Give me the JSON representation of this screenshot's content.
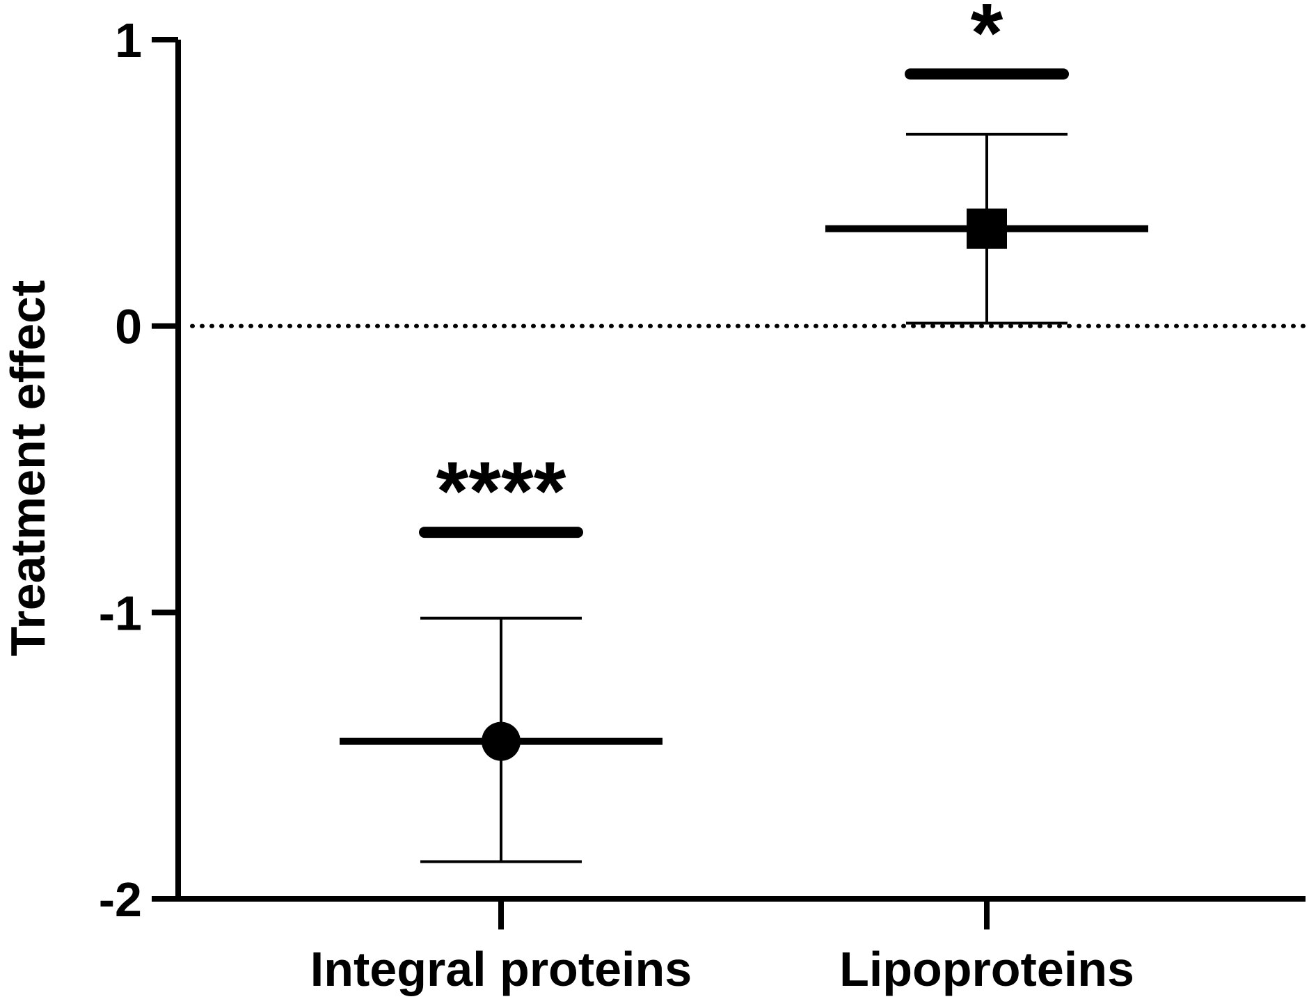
{
  "chart_data": {
    "type": "scatter",
    "ylabel": "Treatment effect",
    "xlabel": "",
    "title": "",
    "ylim": [
      -2,
      1
    ],
    "yticks": [
      "1",
      "0",
      "-1",
      "-2"
    ],
    "ytick_values": [
      1,
      0,
      -1,
      -2
    ],
    "categories": [
      "Integral proteins",
      "Lipoproteins"
    ],
    "reference_line": {
      "y": 0,
      "style": "dotted"
    },
    "grid": false,
    "points": [
      {
        "category": "Integral proteins",
        "marker": "circle",
        "y": -1.45,
        "y_err_low": -1.87,
        "y_err_high": -1.02,
        "significance": "****",
        "significance_bar_y": -0.72
      },
      {
        "category": "Lipoproteins",
        "marker": "square",
        "y": 0.34,
        "y_err_low": 0.01,
        "y_err_high": 0.67,
        "significance": "*",
        "significance_bar_y": 0.88
      }
    ],
    "colors": {
      "ink": "#000000",
      "background": "#ffffff"
    }
  }
}
